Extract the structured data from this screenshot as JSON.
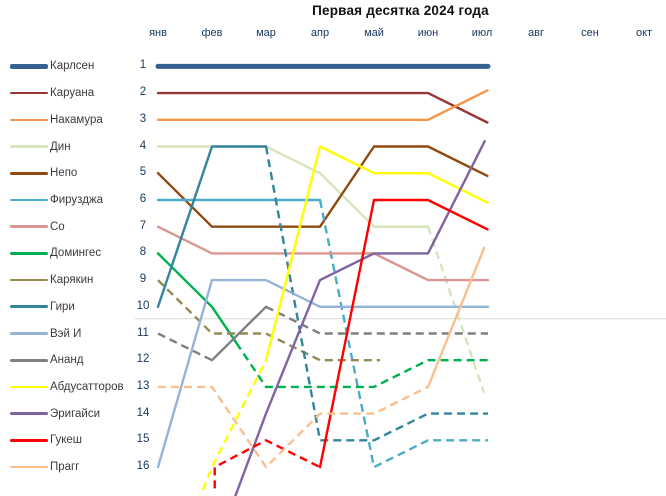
{
  "chart_data": {
    "type": "line",
    "subtype": "bump-rank-chart",
    "title": "Первая десятка 2024 года",
    "x_labels": [
      "янв",
      "фев",
      "мар",
      "апр",
      "май",
      "июн",
      "июл",
      "авг",
      "сен",
      "окт"
    ],
    "months_with_data": 7,
    "y_axis": {
      "label": "rank",
      "min_rank": 1,
      "max_rank": 16,
      "inverted": true
    },
    "top10_cutoff_line": {
      "present": true,
      "after_rank": 10,
      "color": "#D9D9D9"
    },
    "legend_position": "left",
    "grid": false,
    "series": [
      {
        "name": "Карлсен",
        "color": "#376092",
        "width": 5,
        "legend_rank": 1,
        "ranks_by_month": [
          1,
          1,
          1,
          1,
          1,
          1,
          1
        ],
        "segments": [
          {
            "dashed": false,
            "points": [
              [
                0,
                1
              ],
              [
                6,
                1
              ]
            ]
          }
        ]
      },
      {
        "name": "Каруана",
        "color": "#953735",
        "width": 2.4,
        "legend_rank": 2,
        "ranks_by_month": [
          2,
          2,
          2,
          2,
          2,
          2,
          3
        ],
        "segments": [
          {
            "dashed": false,
            "points": [
              [
                0,
                2
              ],
              [
                5,
                2
              ],
              [
                6,
                3
              ]
            ]
          }
        ]
      },
      {
        "name": "Накамура",
        "color": "#F79646",
        "width": 2.4,
        "legend_rank": 3,
        "ranks_by_month": [
          3,
          3,
          3,
          3,
          3,
          3,
          2
        ],
        "segments": [
          {
            "dashed": false,
            "points": [
              [
                0,
                3
              ],
              [
                5,
                3
              ],
              [
                6,
                2
              ]
            ]
          }
        ]
      },
      {
        "name": "Дин",
        "color": "#D7E4BC",
        "width": 2.4,
        "legend_rank": 4,
        "ranks_by_month": [
          4,
          4,
          4,
          5,
          7,
          7,
          13
        ],
        "segments": [
          {
            "dashed": false,
            "points": [
              [
                0,
                4
              ],
              [
                2,
                4
              ],
              [
                3,
                5
              ],
              [
                4,
                7
              ],
              [
                5,
                7
              ]
            ]
          },
          {
            "dashed": true,
            "points": [
              [
                5,
                7
              ],
              [
                6,
                13
              ]
            ]
          }
        ]
      },
      {
        "name": "Непо",
        "color": "#8E4A0F",
        "width": 2.4,
        "legend_rank": 5,
        "ranks_by_month": [
          5,
          7,
          7,
          7,
          4,
          4,
          5
        ],
        "segments": [
          {
            "dashed": false,
            "points": [
              [
                0,
                5
              ],
              [
                1,
                7
              ],
              [
                3,
                7
              ],
              [
                4,
                4
              ],
              [
                5,
                4
              ],
              [
                6,
                5
              ]
            ]
          }
        ]
      },
      {
        "name": "Фирузджа",
        "color": "#4BACC6",
        "width": 2.4,
        "legend_rank": 6,
        "ranks_by_month": [
          6,
          6,
          6,
          6,
          16,
          15,
          15
        ],
        "segments": [
          {
            "dashed": false,
            "points": [
              [
                0,
                6
              ],
              [
                3,
                6
              ]
            ]
          },
          {
            "dashed": true,
            "points": [
              [
                3,
                6
              ],
              [
                4,
                16
              ],
              [
                5,
                15
              ],
              [
                6,
                15
              ]
            ]
          }
        ]
      },
      {
        "name": "Со",
        "color": "#D99694",
        "width": 2.4,
        "legend_rank": 7,
        "ranks_by_month": [
          7,
          8,
          8,
          8,
          8,
          9,
          9
        ],
        "segments": [
          {
            "dashed": false,
            "points": [
              [
                0,
                7
              ],
              [
                1,
                8
              ],
              [
                4,
                8
              ],
              [
                5,
                9
              ],
              [
                6,
                9
              ]
            ]
          }
        ]
      },
      {
        "name": "Домингес",
        "color": "#00B050",
        "width": 2.4,
        "legend_rank": 8,
        "ranks_by_month": [
          8,
          10,
          13,
          13,
          13,
          12,
          12
        ],
        "segments": [
          {
            "dashed": false,
            "points": [
              [
                0,
                8
              ],
              [
                1,
                10
              ],
              [
                1.45,
                11.35
              ]
            ]
          },
          {
            "dashed": true,
            "points": [
              [
                1.45,
                11.35
              ],
              [
                2,
                13
              ],
              [
                4,
                13
              ],
              [
                5,
                12
              ],
              [
                6,
                12
              ]
            ]
          }
        ]
      },
      {
        "name": "Карякин",
        "color": "#948A54",
        "width": 2.4,
        "legend_rank": 9,
        "ranks_by_month": [
          9,
          11,
          11,
          12,
          12,
          null,
          null
        ],
        "segments": [
          {
            "dashed": true,
            "points": [
              [
                0,
                9
              ],
              [
                1,
                11
              ],
              [
                2,
                11
              ],
              [
                3,
                12
              ],
              [
                4,
                12
              ]
            ]
          }
        ]
      },
      {
        "name": "Гири",
        "color": "#31859C",
        "width": 2.4,
        "legend_rank": 10,
        "ranks_by_month": [
          10,
          4,
          4,
          15,
          15,
          14,
          14
        ],
        "segments": [
          {
            "dashed": false,
            "points": [
              [
                0,
                10
              ],
              [
                1,
                4
              ],
              [
                2,
                4
              ]
            ]
          },
          {
            "dashed": true,
            "points": [
              [
                2,
                4
              ],
              [
                3,
                15
              ],
              [
                4,
                15
              ],
              [
                5,
                14
              ],
              [
                6,
                14
              ]
            ]
          }
        ]
      },
      {
        "name": "Вэй И",
        "color": "#95B3D7",
        "width": 2.4,
        "legend_rank": 11,
        "ranks_by_month": [
          16,
          9,
          9,
          10,
          10,
          10,
          10
        ],
        "segments": [
          {
            "dashed": false,
            "points": [
              [
                0,
                16
              ],
              [
                1,
                9
              ],
              [
                2,
                9
              ],
              [
                3,
                10
              ],
              [
                6,
                10
              ]
            ]
          }
        ]
      },
      {
        "name": "Ананд",
        "color": "#7F7F7F",
        "width": 2.4,
        "legend_rank": 12,
        "ranks_by_month": [
          11,
          12,
          10,
          11,
          11,
          11,
          11
        ],
        "segments": [
          {
            "dashed": true,
            "points": [
              [
                0,
                11
              ],
              [
                1,
                12
              ]
            ]
          },
          {
            "dashed": false,
            "points": [
              [
                1,
                12
              ],
              [
                2,
                10
              ]
            ]
          },
          {
            "dashed": true,
            "points": [
              [
                2,
                10
              ],
              [
                3,
                11
              ],
              [
                6,
                11
              ]
            ]
          }
        ]
      },
      {
        "name": "Абдусатторов",
        "color": "#FFFF00",
        "width": 2.4,
        "legend_rank": 13,
        "ranks_by_month": [
          null,
          16,
          12,
          4,
          5,
          5,
          6
        ],
        "segments": [
          {
            "dashed": true,
            "points": [
              [
                0.83,
                16.86
              ],
              [
                1,
                16
              ],
              [
                2,
                12
              ]
            ]
          },
          {
            "dashed": false,
            "points": [
              [
                2,
                12
              ],
              [
                3,
                4
              ],
              [
                4,
                5
              ],
              [
                5,
                5
              ],
              [
                6,
                6
              ]
            ]
          }
        ]
      },
      {
        "name": "Эригайси",
        "color": "#8064A2",
        "width": 2.4,
        "legend_rank": 14,
        "ranks_by_month": [
          null,
          null,
          14,
          9,
          8,
          8,
          4
        ],
        "segments": [
          {
            "dashed": false,
            "points": [
              [
                1.43,
                17.1
              ],
              [
                2,
                14
              ],
              [
                3,
                9
              ],
              [
                4,
                8
              ],
              [
                5,
                8
              ],
              [
                6,
                4
              ]
            ]
          }
        ]
      },
      {
        "name": "Гукеш",
        "color": "#FF0000",
        "width": 2.4,
        "legend_rank": 15,
        "ranks_by_month": [
          null,
          16,
          15,
          16,
          6,
          6,
          7
        ],
        "segments": [
          {
            "dashed": true,
            "points": [
              [
                1.05,
                16.8
              ],
              [
                1.05,
                16
              ],
              [
                2,
                15
              ],
              [
                3,
                16
              ]
            ]
          },
          {
            "dashed": false,
            "points": [
              [
                3,
                16
              ],
              [
                4,
                6
              ],
              [
                5,
                6
              ],
              [
                6,
                7
              ]
            ]
          }
        ]
      },
      {
        "name": "Прагг",
        "color": "#FABF8F",
        "width": 2.4,
        "legend_rank": 16,
        "ranks_by_month": [
          13,
          13,
          16,
          14,
          14,
          13,
          8
        ],
        "segments": [
          {
            "dashed": true,
            "points": [
              [
                0,
                13
              ],
              [
                1,
                13
              ],
              [
                2,
                16
              ],
              [
                3,
                14
              ],
              [
                4,
                14
              ],
              [
                5,
                13
              ]
            ]
          },
          {
            "dashed": false,
            "points": [
              [
                5,
                13
              ],
              [
                6,
                8
              ]
            ]
          }
        ]
      }
    ]
  }
}
